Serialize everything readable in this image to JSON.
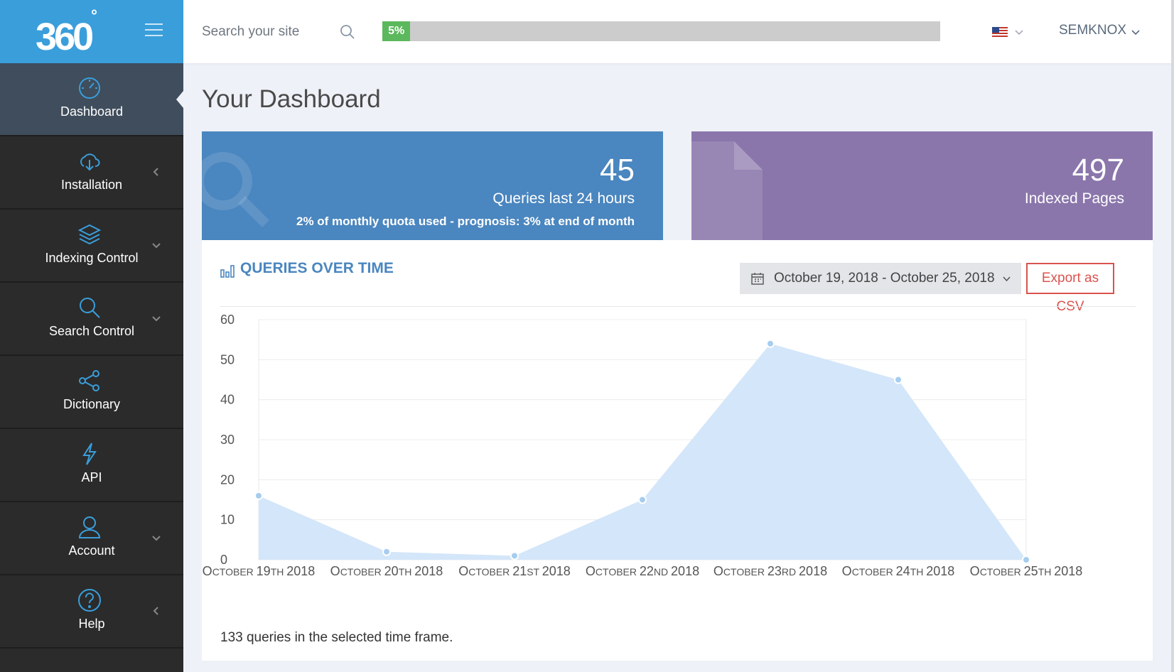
{
  "brand": {
    "logo_text": "360",
    "logo_degree": "°"
  },
  "sidebar": {
    "items": [
      {
        "label": "Dashboard",
        "icon": "speedometer-icon",
        "chevron": ""
      },
      {
        "label": "Installation",
        "icon": "cloud-download-icon",
        "chevron": "left"
      },
      {
        "label": "Indexing Control",
        "icon": "layers-icon",
        "chevron": "down"
      },
      {
        "label": "Search Control",
        "icon": "magnifier-icon",
        "chevron": "down"
      },
      {
        "label": "Dictionary",
        "icon": "share-icon",
        "chevron": ""
      },
      {
        "label": "API",
        "icon": "lightning-icon",
        "chevron": ""
      },
      {
        "label": "Account",
        "icon": "user-icon",
        "chevron": "down"
      },
      {
        "label": "Help",
        "icon": "question-icon",
        "chevron": "left"
      }
    ]
  },
  "topbar": {
    "search_placeholder": "Search your site",
    "quota_progress": 0.05,
    "quota_progress_label": "5%",
    "language_flag": "us-flag-icon",
    "user_name": "SEMKNOX"
  },
  "page": {
    "title": "Your Dashboard"
  },
  "cards": {
    "queries": {
      "value": "45",
      "label": "Queries last 24 hours",
      "sub": "2% of monthly quota used - prognosis: 3% at end of month",
      "color": "#4a86bf"
    },
    "pages": {
      "value": "497",
      "label": "Indexed Pages",
      "color": "#8a76ab"
    }
  },
  "panel": {
    "title": "QUERIES OVER TIME",
    "date_range": "October 19, 2018 - October 25, 2018",
    "export_label": "Export as CSV",
    "summary": "133 queries in the selected time frame."
  },
  "chart_data": {
    "type": "area",
    "title": "",
    "xlabel": "",
    "ylabel": "",
    "ylim": [
      0,
      60
    ],
    "yticks": [
      0,
      10,
      20,
      30,
      40,
      50,
      60
    ],
    "grid": true,
    "categories": [
      {
        "month": "October",
        "day": "19",
        "suffix": "th",
        "year": "2018"
      },
      {
        "month": "October",
        "day": "20",
        "suffix": "th",
        "year": "2018"
      },
      {
        "month": "October",
        "day": "21",
        "suffix": "st",
        "year": "2018"
      },
      {
        "month": "October",
        "day": "22",
        "suffix": "nd",
        "year": "2018"
      },
      {
        "month": "October",
        "day": "23",
        "suffix": "rd",
        "year": "2018"
      },
      {
        "month": "October",
        "day": "24",
        "suffix": "th",
        "year": "2018"
      },
      {
        "month": "October",
        "day": "25",
        "suffix": "th",
        "year": "2018"
      }
    ],
    "values": [
      16,
      2,
      1,
      15,
      54,
      45,
      0
    ],
    "fill_color": "#d4e6f9",
    "point_color": "#a6cdef"
  }
}
